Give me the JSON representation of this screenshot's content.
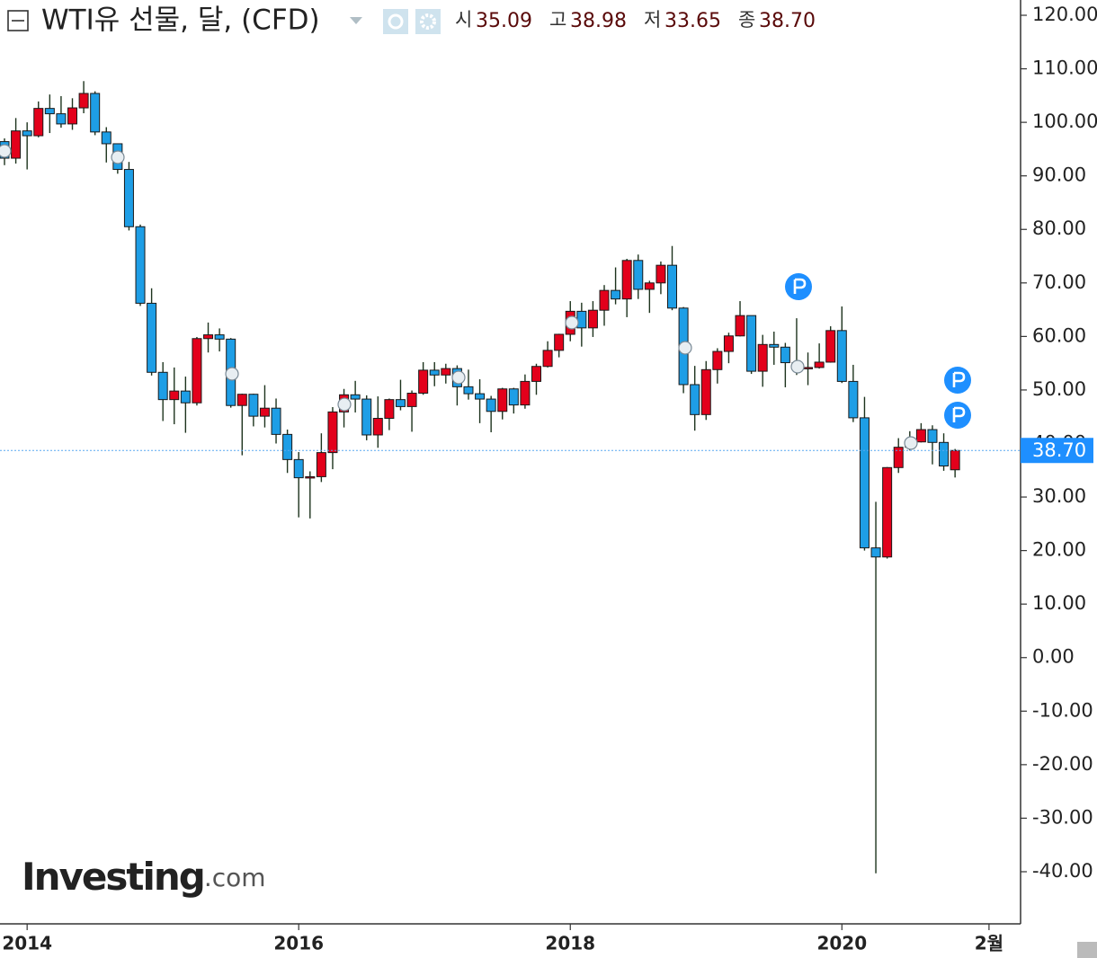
{
  "chart_data": {
    "type": "candlestick",
    "title": "WTI유 선물, 달, (CFD)",
    "ohlc_legend": [
      {
        "label": "시",
        "value": "35.09"
      },
      {
        "label": "고",
        "value": "38.98"
      },
      {
        "label": "저",
        "value": "33.65"
      },
      {
        "label": "종",
        "value": "38.70"
      }
    ],
    "brand": "Investing",
    "brand_suffix": ".com",
    "up_color": "#e3001b",
    "down_color": "#1e9ee6",
    "last_price": {
      "value": 38.7,
      "label": "38.70"
    },
    "ylim": [
      -49.5,
      122.8
    ],
    "yticks": [
      {
        "value": 120,
        "label": "120.00"
      },
      {
        "value": 110,
        "label": "110.00"
      },
      {
        "value": 100,
        "label": "100.00"
      },
      {
        "value": 90,
        "label": "90.00"
      },
      {
        "value": 80,
        "label": "80.00"
      },
      {
        "value": 70,
        "label": "70.00"
      },
      {
        "value": 60,
        "label": "60.00"
      },
      {
        "value": 50,
        "label": "50.00"
      },
      {
        "value": 40,
        "label": "40.00"
      },
      {
        "value": 30,
        "label": "30.00"
      },
      {
        "value": 20,
        "label": "20.00"
      },
      {
        "value": 10,
        "label": "10.00"
      },
      {
        "value": 0,
        "label": "0.00"
      },
      {
        "value": -10,
        "label": "-10.00"
      },
      {
        "value": -20,
        "label": "-20.00"
      },
      {
        "value": -30,
        "label": "-30.00"
      },
      {
        "value": -40,
        "label": "-40.00"
      }
    ],
    "categories": [
      null,
      null,
      "2014",
      null,
      null,
      null,
      null,
      null,
      null,
      null,
      null,
      null,
      null,
      null,
      null,
      null,
      null,
      null,
      null,
      null,
      null,
      null,
      null,
      null,
      null,
      null,
      "2016",
      null,
      null,
      null,
      null,
      null,
      null,
      null,
      null,
      null,
      null,
      null,
      null,
      null,
      null,
      null,
      null,
      null,
      null,
      null,
      null,
      null,
      null,
      null,
      "2018",
      null,
      null,
      null,
      null,
      null,
      null,
      null,
      null,
      null,
      null,
      null,
      null,
      null,
      null,
      null,
      null,
      null,
      null,
      null,
      null,
      null,
      null,
      null,
      "2020",
      null,
      null,
      null,
      null,
      null,
      null,
      null,
      null,
      null,
      null,
      null,
      null,
      "2월"
    ],
    "open": [
      96.4,
      93.3,
      98.4,
      97.5,
      102.6,
      101.6,
      99.7,
      102.7,
      105.4,
      98.2,
      96.0,
      91.2,
      80.5,
      66.2,
      53.3,
      48.2,
      49.8,
      47.6,
      59.6,
      60.3,
      59.5,
      47.1,
      49.2,
      45.1,
      46.6,
      41.7,
      37.0,
      33.6,
      33.8,
      38.3,
      45.9,
      49.1,
      48.3,
      41.6,
      44.7,
      48.2,
      46.9,
      49.4,
      53.7,
      52.8,
      54.0,
      50.6,
      49.3,
      48.3,
      46.0,
      50.2,
      47.2,
      51.6,
      54.4,
      57.4,
      60.4,
      64.7,
      61.6,
      64.9,
      68.6,
      67.0,
      74.2,
      68.8,
      70.0,
      73.3,
      65.3,
      51.0,
      45.4,
      53.8,
      57.2,
      60.1,
      63.9,
      53.5,
      58.5,
      58.0,
      55.1,
      54.1,
      54.2,
      55.2,
      61.1,
      51.6,
      44.8,
      20.5,
      18.8,
      35.5,
      39.3,
      40.3,
      42.6,
      40.2,
      35.09,
      null,
      null,
      null
    ],
    "high": [
      97.0,
      100.8,
      100.0,
      103.9,
      105.2,
      104.9,
      104.5,
      107.7,
      105.8,
      99.1,
      96.0,
      92.6,
      80.9,
      69.0,
      55.2,
      54.2,
      52.5,
      59.9,
      62.6,
      61.5,
      59.7,
      49.3,
      49.3,
      50.9,
      48.4,
      42.6,
      38.4,
      34.8,
      41.9,
      46.8,
      50.2,
      51.7,
      49.0,
      48.8,
      48.4,
      51.9,
      49.9,
      55.2,
      55.2,
      54.9,
      54.6,
      53.8,
      52.0,
      48.9,
      50.4,
      50.4,
      52.9,
      54.9,
      59.1,
      60.5,
      66.6,
      66.3,
      66.6,
      69.6,
      72.9,
      74.5,
      75.3,
      70.4,
      74.0,
      76.9,
      65.5,
      54.5,
      55.4,
      57.8,
      60.7,
      66.6,
      63.9,
      60.3,
      60.9,
      58.8,
      63.4,
      57.0,
      58.7,
      61.9,
      65.6,
      54.7,
      48.7,
      29.1,
      35.6,
      41.0,
      42.3,
      43.8,
      43.4,
      41.9,
      38.98,
      null,
      null,
      null
    ],
    "low": [
      92.0,
      92.3,
      91.2,
      97.2,
      98.0,
      99.0,
      98.6,
      101.7,
      97.6,
      92.5,
      90.4,
      79.8,
      65.7,
      52.7,
      44.2,
      43.6,
      42.0,
      47.1,
      57.0,
      57.2,
      46.7,
      37.8,
      43.2,
      43.0,
      40.0,
      34.5,
      26.2,
      26.0,
      32.8,
      35.2,
      43.0,
      45.8,
      40.6,
      39.2,
      42.5,
      46.2,
      42.2,
      49.1,
      50.7,
      51.2,
      47.1,
      48.2,
      43.8,
      42.1,
      44.5,
      45.6,
      46.5,
      49.1,
      54.2,
      56.1,
      59.1,
      58.1,
      59.9,
      62.0,
      66.0,
      63.6,
      67.0,
      64.4,
      67.9,
      64.9,
      49.4,
      42.4,
      44.4,
      51.2,
      55.0,
      60.0,
      53.0,
      50.6,
      54.7,
      50.5,
      52.8,
      50.9,
      54.0,
      55.1,
      51.3,
      44.0,
      20.0,
      -40.3,
      18.5,
      34.5,
      38.7,
      40.2,
      36.1,
      34.9,
      33.65,
      null,
      null,
      null
    ],
    "close": [
      93.3,
      98.4,
      97.5,
      102.6,
      101.6,
      99.7,
      102.7,
      105.4,
      98.2,
      96.0,
      91.2,
      80.5,
      66.2,
      53.3,
      48.2,
      49.8,
      47.6,
      59.6,
      60.3,
      59.5,
      47.1,
      49.2,
      45.1,
      46.6,
      41.7,
      37.0,
      33.6,
      33.8,
      38.3,
      45.9,
      49.1,
      48.3,
      41.6,
      44.7,
      48.2,
      46.9,
      49.4,
      53.7,
      52.8,
      54.0,
      50.6,
      49.3,
      48.3,
      46.0,
      50.2,
      47.2,
      51.6,
      54.4,
      57.4,
      60.4,
      64.7,
      61.6,
      64.9,
      68.6,
      67.0,
      74.2,
      68.8,
      70.0,
      73.3,
      65.3,
      51.0,
      45.4,
      53.8,
      57.2,
      60.1,
      63.9,
      53.5,
      58.5,
      58.0,
      55.1,
      54.1,
      54.2,
      55.2,
      61.1,
      51.6,
      44.8,
      20.5,
      18.8,
      35.5,
      39.3,
      40.3,
      42.6,
      40.2,
      35.8,
      38.7,
      null,
      null,
      null
    ]
  }
}
